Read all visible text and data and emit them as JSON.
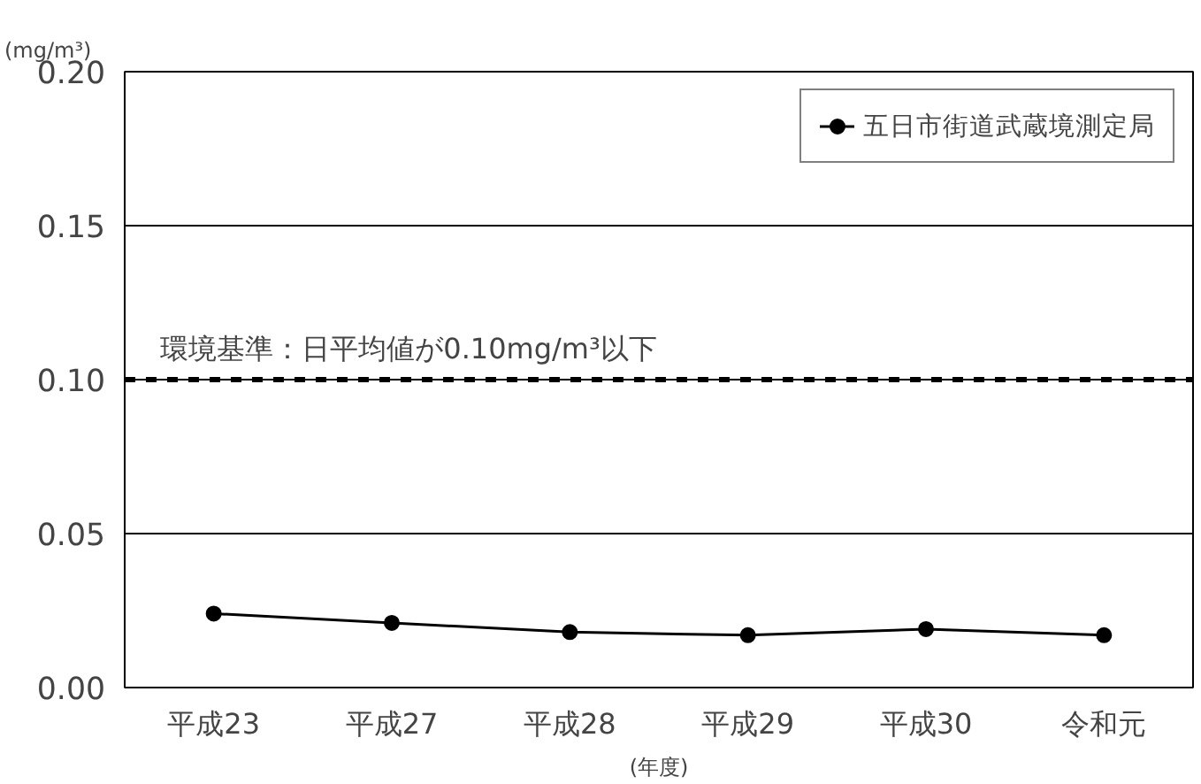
{
  "chart_data": {
    "type": "line",
    "ylabel": "(mg/m³)",
    "xlabel": "(年度)",
    "categories": [
      "平成23",
      "平成27",
      "平成28",
      "平成29",
      "平成30",
      "令和元"
    ],
    "series": [
      {
        "name": "五日市街道武蔵境測定局",
        "color": "#000000",
        "values": [
          0.024,
          0.021,
          0.018,
          0.017,
          0.019,
          0.017
        ]
      }
    ],
    "ylim": [
      0,
      0.2
    ],
    "yticks": [
      {
        "value": 0,
        "label": "0.00"
      },
      {
        "value": 0.05,
        "label": "0.05"
      },
      {
        "value": 0.1,
        "label": "0.10"
      },
      {
        "value": 0.15,
        "label": "0.15"
      },
      {
        "value": 0.2,
        "label": "0.20"
      }
    ],
    "ref_lines": [
      {
        "axis": "y",
        "value": 0.1,
        "label": "環境基準：日平均値が0.10mg/m³以下",
        "color": "#000000",
        "line_style": "dashed"
      }
    ],
    "grid": "y",
    "legend": "top right",
    "marker": "circle",
    "line_style": "solid"
  }
}
